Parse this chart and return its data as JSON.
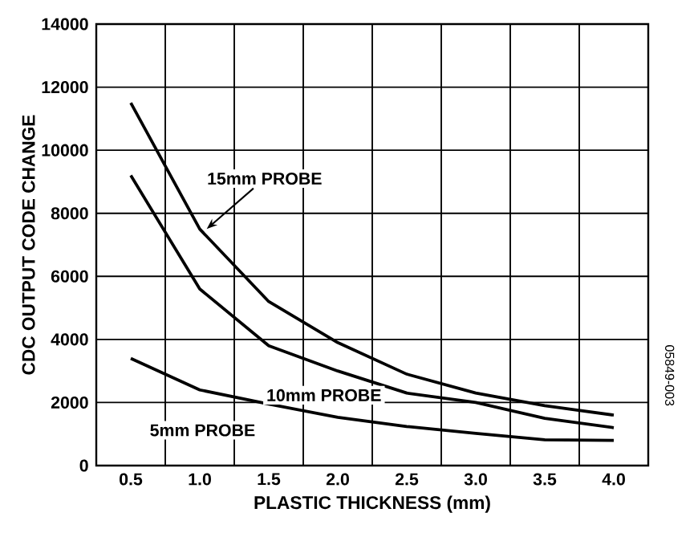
{
  "chart_data": {
    "type": "line",
    "xlabel": "PLASTIC THICKNESS (mm)",
    "ylabel": "CDC OUTPUT CODE CHANGE",
    "x": [
      0.5,
      1.0,
      1.5,
      2.0,
      2.5,
      3.0,
      3.5,
      4.0
    ],
    "series": [
      {
        "name": "15mm PROBE",
        "color": "#000000",
        "values": [
          11500,
          7500,
          5200,
          3900,
          2900,
          2300,
          1900,
          1600
        ]
      },
      {
        "name": "10mm PROBE",
        "color": "#000000",
        "values": [
          9200,
          5600,
          3800,
          3000,
          2300,
          2000,
          1500,
          1200
        ]
      },
      {
        "name": "5mm PROBE",
        "color": "#000000",
        "values": [
          3400,
          2400,
          1950,
          1530,
          1240,
          1020,
          820,
          800
        ]
      }
    ],
    "xlim": [
      0.25,
      4.25
    ],
    "xticks": [
      {
        "value": 0.25,
        "label": null
      },
      0.5,
      {
        "value": 0.75,
        "label": null
      },
      {
        "value": 1.0,
        "label": "1.0"
      },
      {
        "value": 1.25,
        "label": null
      },
      1.5,
      {
        "value": 1.75,
        "label": null
      },
      {
        "value": 2.0,
        "label": "2.0"
      },
      {
        "value": 2.25,
        "label": null
      },
      2.5,
      {
        "value": 2.75,
        "label": null
      },
      {
        "value": 3.0,
        "label": "3.0"
      },
      {
        "value": 3.25,
        "label": null
      },
      3.5,
      {
        "value": 3.75,
        "label": null
      },
      {
        "value": 4.0,
        "label": "4.0"
      },
      {
        "value": 4.25,
        "label": null
      }
    ],
    "ylim": [
      0,
      14000
    ],
    "yticks": [
      0,
      2000,
      4000,
      6000,
      8000,
      10000,
      12000,
      14000
    ],
    "grid": true,
    "line_style": "solid",
    "annotations": [
      "05849-003"
    ]
  }
}
